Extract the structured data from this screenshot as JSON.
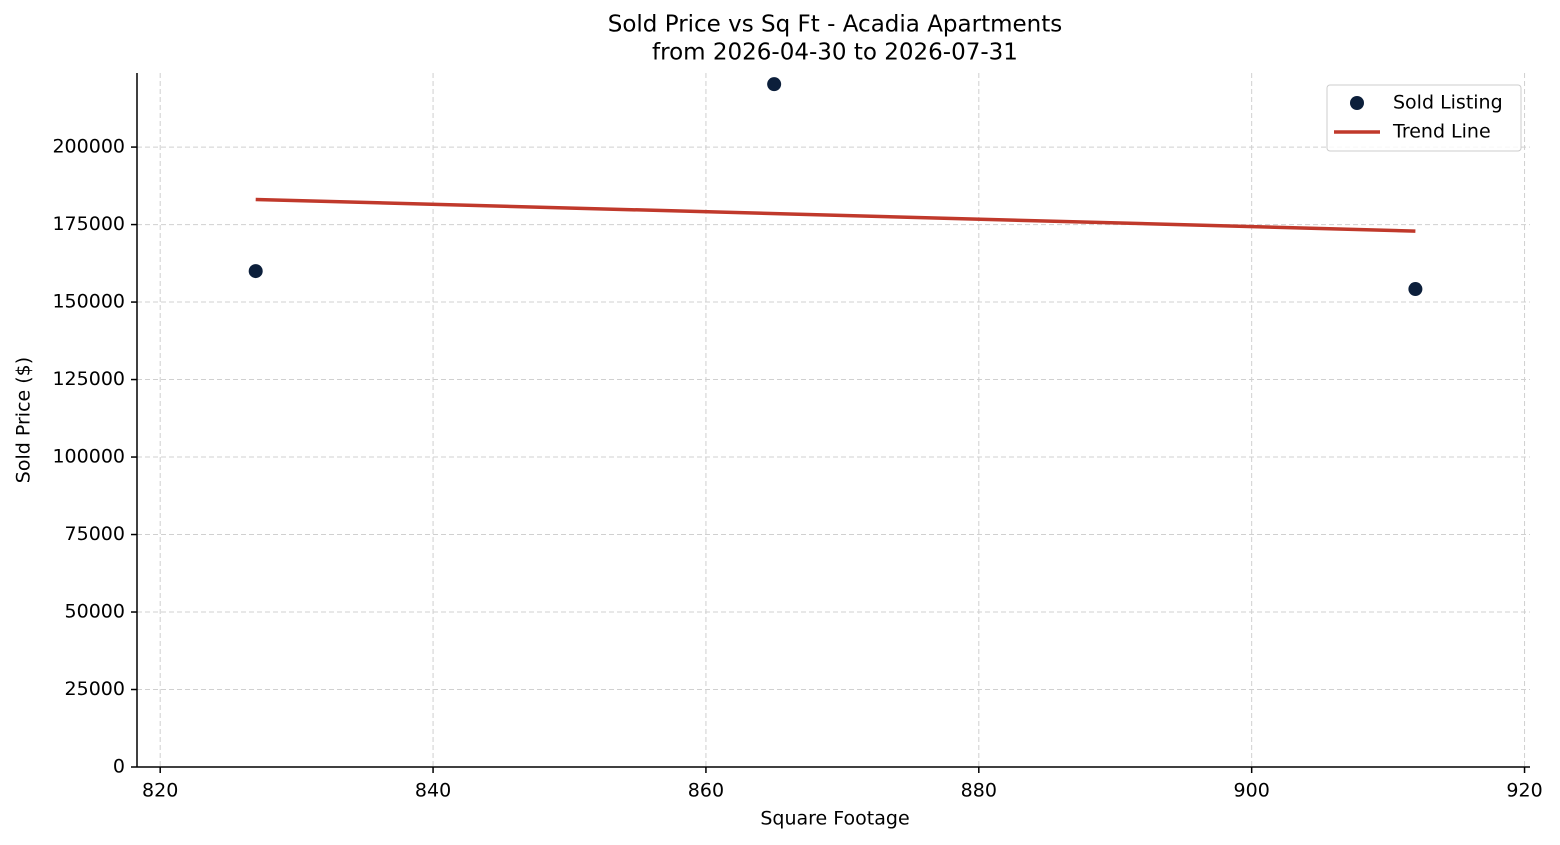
{
  "chart_data": {
    "type": "scatter",
    "title": "Sold Price vs Sq Ft - Acadia Apartments",
    "subtitle": "from 2026-04-30 to 2026-07-31",
    "x_label": "Square Footage",
    "y_label": "Sold Price ($)",
    "xlim": [
      818.3,
      920.4
    ],
    "ylim": [
      0,
      223900
    ],
    "xticks": [
      820,
      840,
      860,
      880,
      900,
      920
    ],
    "yticks": [
      0,
      25000,
      50000,
      75000,
      100000,
      125000,
      150000,
      175000,
      200000
    ],
    "grid": true,
    "legend": "upper right",
    "series": [
      {
        "name": "Sold Listing",
        "type": "scatter",
        "color": "#0c1f3b",
        "x": [
          827,
          865,
          912
        ],
        "values": [
          160000,
          220300,
          154200
        ]
      },
      {
        "name": "Trend Line",
        "type": "line",
        "color": "#c0392b",
        "x": [
          827,
          912
        ],
        "values": [
          183100,
          172900
        ]
      }
    ]
  }
}
